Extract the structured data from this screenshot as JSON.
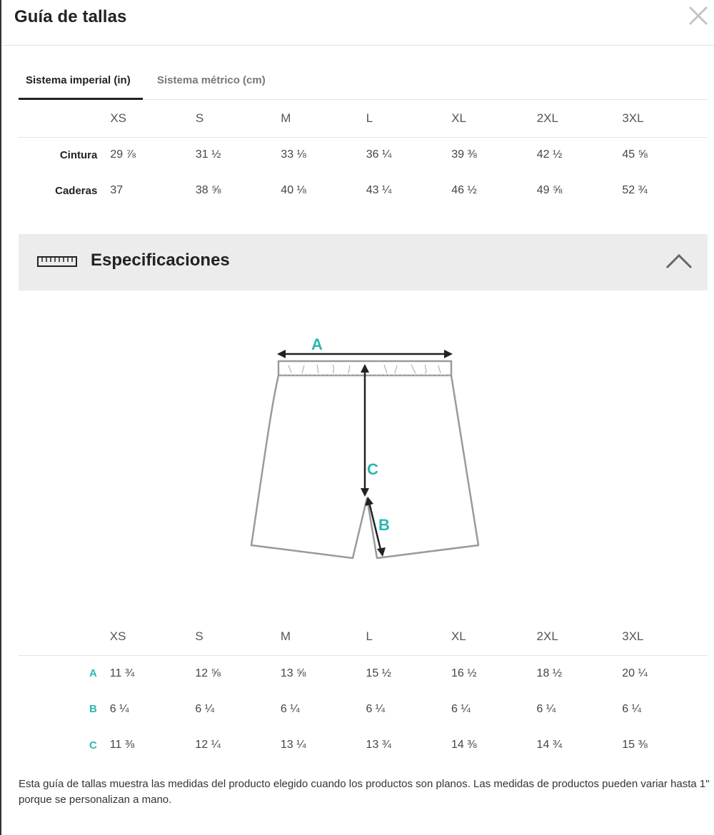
{
  "modal": {
    "title": "Guía de tallas"
  },
  "tabs": [
    {
      "label": "Sistema imperial (in)",
      "active": true
    },
    {
      "label": "Sistema métrico (cm)",
      "active": false
    }
  ],
  "sizes": [
    "XS",
    "S",
    "M",
    "L",
    "XL",
    "2XL",
    "3XL"
  ],
  "body_measurements": {
    "rows": [
      {
        "label": "Cintura",
        "values": [
          "29 ⅞",
          "31 ½",
          "33 ⅛",
          "36 ¼",
          "39 ⅜",
          "42 ½",
          "45 ⅝"
        ]
      },
      {
        "label": "Caderas",
        "values": [
          "37",
          "38 ⅝",
          "40 ⅛",
          "43 ¼",
          "46 ½",
          "49 ⅝",
          "52 ¾"
        ]
      }
    ]
  },
  "specifications": {
    "label": "Especificaciones",
    "icons": {
      "ruler": "ruler-icon",
      "toggle": "chevron-up-icon"
    },
    "diagram_labels": {
      "a": "A",
      "b": "B",
      "c": "C"
    },
    "accent_color": "#2ab7b0",
    "rows": [
      {
        "label": "A",
        "values": [
          "11 ¾",
          "12 ⅝",
          "13 ⅝",
          "15 ½",
          "16 ½",
          "18 ½",
          "20 ¼"
        ]
      },
      {
        "label": "B",
        "values": [
          "6 ¼",
          "6 ¼",
          "6 ¼",
          "6 ¼",
          "6 ¼",
          "6 ¼",
          "6 ¼"
        ]
      },
      {
        "label": "C",
        "values": [
          "11 ⅜",
          "12 ¼",
          "13 ¼",
          "13 ¾",
          "14 ⅜",
          "14 ¾",
          "15 ⅜"
        ]
      }
    ]
  },
  "footnote": "Esta guía de tallas muestra las medidas del producto elegido cuando los productos son planos. Las medidas de productos pueden variar hasta 1\" porque se personalizan a mano."
}
